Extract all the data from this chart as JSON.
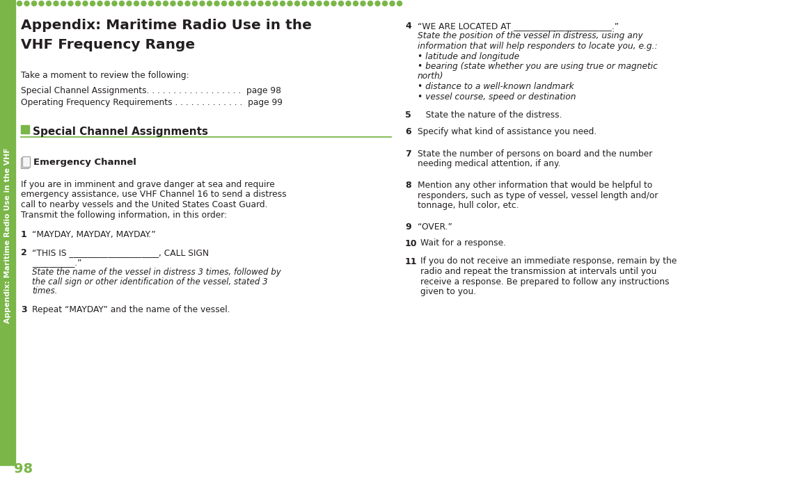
{
  "bg_color": "#ffffff",
  "green_color": "#7ab648",
  "text_color": "#231f20",
  "sidebar_bg": "#7ab648",
  "page_number": "98",
  "title_line1": "Appendix: Maritime Radio Use in the",
  "title_line2": "VHF Frequency Range",
  "intro": "Take a moment to review the following:",
  "toc_line1": "Special Channel Assignments. . . . . . . . . . . . . . . . . .  page 98",
  "toc_line2": "Operating Frequency Requirements . . . . . . . . . . . . .  page 99",
  "section_title": "Special Channel Assignments",
  "subsection_title": "Emergency Channel",
  "body_lines": [
    "If you are in imminent and grave danger at sea and require",
    "emergency assistance, use VHF Channel 16 to send a distress",
    "call to nearby vessels and the United States Coast Guard.",
    "Transmit the following information, in this order:"
  ],
  "item1_text": "“MAYDAY, MAYDAY, MAYDAY.”",
  "item2_line1": "“THIS IS _____________________, CALL SIGN",
  "item2_line2": "__________.”",
  "item2_sub": [
    "State the name of the vessel in distress 3 times, followed by",
    "the call sign or other identification of the vessel, stated 3",
    "times."
  ],
  "item3_text": "Repeat “MAYDAY” and the name of the vessel.",
  "r4_line1": "“WE ARE LOCATED AT _______________________.”",
  "r4_lines_italic": [
    "State the position of the vessel in distress, using any",
    "information that will help responders to locate you, e.g.:",
    "• latitude and longitude",
    "• bearing (state whether you are using true or magnetic",
    "north)",
    "• distance to a well-known landmark",
    "• vessel course, speed or destination"
  ],
  "r5_text": "State the nature of the distress.",
  "r6_text": "Specify what kind of assistance you need.",
  "r7_lines": [
    "State the number of persons on board and the number",
    "needing medical attention, if any."
  ],
  "r8_lines": [
    "Mention any other information that would be helpful to",
    "responders, such as type of vessel, vessel length and/or",
    "tonnage, hull color, etc."
  ],
  "r9_text": "“OVER.”",
  "r10_text": "Wait for a response.",
  "r11_lines": [
    "If you do not receive an immediate response, remain by the",
    "radio and repeat the transmission at intervals until you",
    "receive a response. Be prepared to follow any instructions",
    "given to you."
  ],
  "sidebar_label": "Appendix: Maritime Radio Use in the VHF"
}
